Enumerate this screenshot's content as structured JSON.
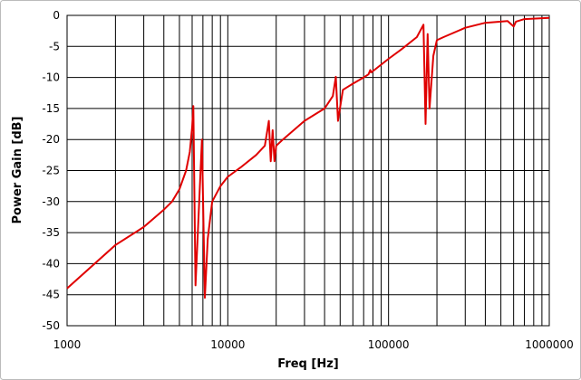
{
  "chart_data": {
    "type": "line",
    "x_label": "Freq [Hz]",
    "y_label": "Power Gain [dB]",
    "log_x": true,
    "grid": true,
    "xlim": [
      1000,
      1000000
    ],
    "xticks": [
      1000,
      10000,
      100000,
      1000000
    ],
    "xminorticks": [
      2000,
      3000,
      4000,
      5000,
      6000,
      7000,
      8000,
      9000,
      20000,
      30000,
      40000,
      50000,
      60000,
      70000,
      80000,
      90000,
      200000,
      300000,
      400000,
      500000,
      600000,
      700000,
      800000,
      900000
    ],
    "ylim": [
      -50,
      0
    ],
    "yticks": [
      -50,
      -45,
      -40,
      -35,
      -30,
      -25,
      -20,
      -15,
      -10,
      -5,
      0
    ],
    "series": [
      {
        "color": "#e00000",
        "x": [
          1000,
          2000,
          3000,
          4000,
          4500,
          5000,
          5500,
          5800,
          6000,
          6100,
          6300,
          6900,
          7200,
          7500,
          8000,
          9000,
          10000,
          12000,
          15000,
          17000,
          18000,
          18500,
          19000,
          19500,
          20000,
          22000,
          30000,
          40000,
          45000,
          47000,
          48500,
          52000,
          60000,
          70000,
          75000,
          77000,
          78000,
          100000,
          120000,
          150000,
          165000,
          170000,
          175000,
          180000,
          190000,
          200000,
          220000,
          300000,
          400000,
          500000,
          550000,
          600000,
          620000,
          700000,
          1000000
        ],
        "values": [
          -44,
          -37,
          -34.1,
          -31.3,
          -30,
          -28,
          -25,
          -22,
          -18,
          -14.6,
          -43.5,
          -20,
          -45.5,
          -36,
          -30,
          -27.5,
          -26,
          -24.5,
          -22.5,
          -21,
          -17,
          -23.5,
          -18.5,
          -23.5,
          -21,
          -20,
          -17,
          -15,
          -13,
          -9.9,
          -17,
          -12,
          -11,
          -10,
          -9.5,
          -8.8,
          -9.2,
          -7,
          -5.5,
          -3.5,
          -1.5,
          -17.5,
          -3,
          -15,
          -6.5,
          -4,
          -3.5,
          -2,
          -1.2,
          -1,
          -0.9,
          -1.8,
          -1,
          -0.6,
          -0.4
        ]
      }
    ]
  }
}
